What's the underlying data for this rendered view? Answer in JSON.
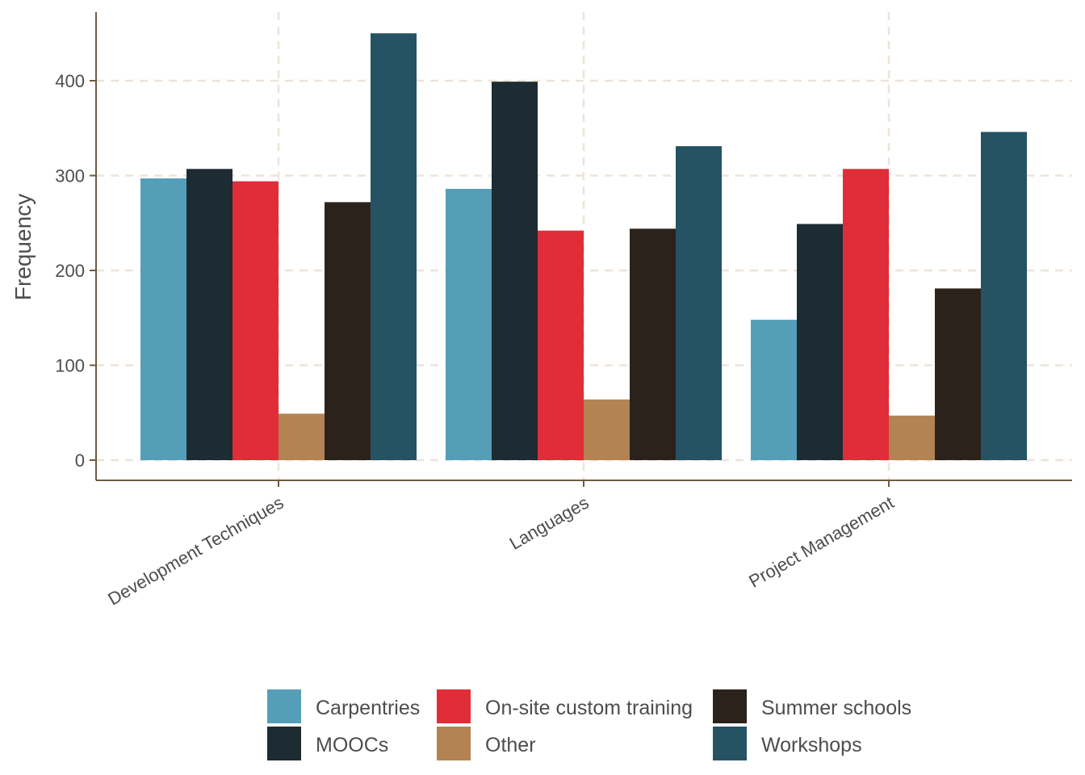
{
  "chart_data": {
    "type": "bar",
    "title": "",
    "xlabel": "",
    "ylabel": "Frequency",
    "categories": [
      "Development Techniques",
      "Languages",
      "Project Management"
    ],
    "series": [
      {
        "name": "Carpentries",
        "color": "#559EB8",
        "values": [
          297,
          286,
          148
        ]
      },
      {
        "name": "MOOCs",
        "color": "#1D2B33",
        "values": [
          307,
          399,
          249
        ]
      },
      {
        "name": "On-site custom training",
        "color": "#E02D38",
        "values": [
          294,
          242,
          307
        ]
      },
      {
        "name": "Other",
        "color": "#B38353",
        "values": [
          49,
          64,
          47
        ]
      },
      {
        "name": "Summer schools",
        "color": "#2C221C",
        "values": [
          272,
          244,
          181
        ]
      },
      {
        "name": "Workshops",
        "color": "#255364",
        "values": [
          450,
          331,
          346
        ]
      }
    ],
    "yticks": [
      0,
      100,
      200,
      300,
      400
    ],
    "ylim": [
      -21,
      472
    ],
    "grid": true,
    "grid_color": "#EDE3D8",
    "axis_color": "#6E5B45",
    "legend_position": "bottom"
  }
}
